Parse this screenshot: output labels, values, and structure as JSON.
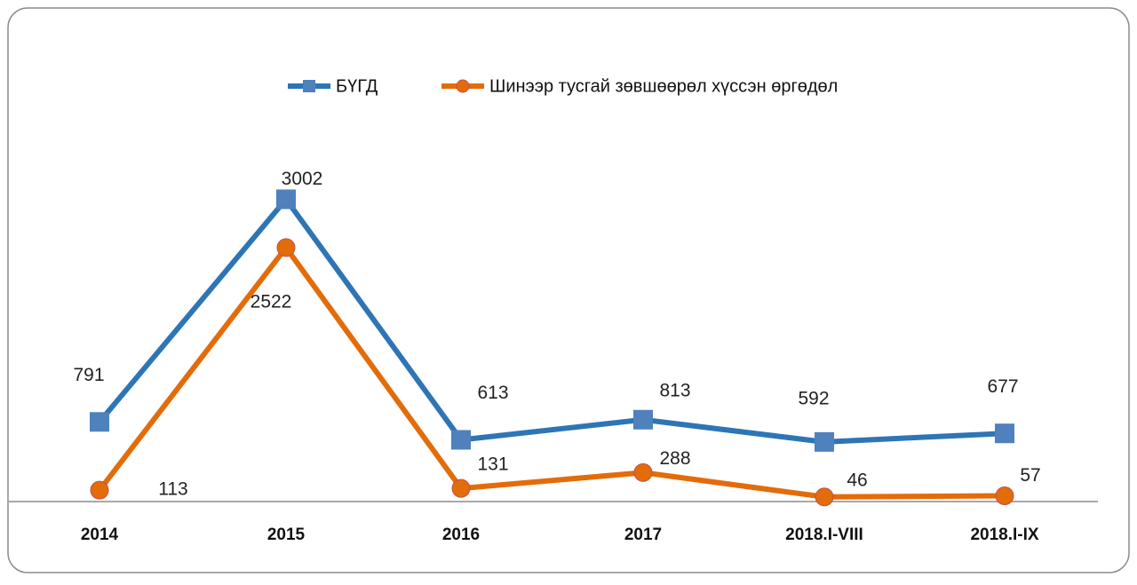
{
  "chart_data": {
    "type": "line",
    "categories": [
      "2014",
      "2015",
      "2016",
      "2017",
      "2018.I-VIII",
      "2018.I-IX"
    ],
    "series": [
      {
        "name": "БҮГД",
        "color": "#2e75b6",
        "marker": "square",
        "values": [
          791,
          3002,
          613,
          813,
          592,
          677
        ]
      },
      {
        "name": "Шинээр тусгай зөвшөөрөл хүссэн өргөдөл",
        "color": "#e36c0a",
        "marker": "circle",
        "values": [
          113,
          2522,
          131,
          288,
          46,
          57
        ]
      }
    ],
    "ylim": [
      0,
      3500
    ],
    "legend": "top"
  }
}
